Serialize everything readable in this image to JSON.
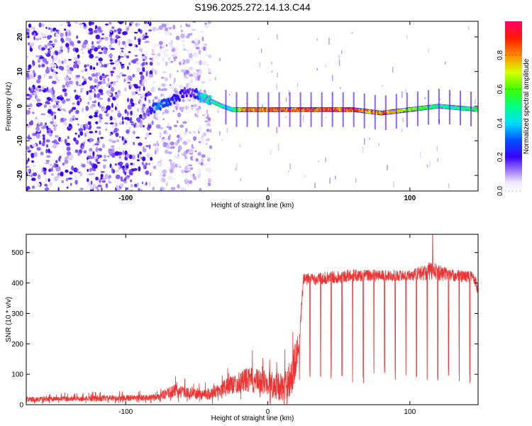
{
  "title": "S196.2025.272.14.13.C44",
  "chart_data": [
    {
      "type": "heatmap",
      "name": "spectrogram",
      "xlabel": "Height of straight line (km)",
      "ylabel": "Frequency (Hz)",
      "xlim": [
        -170,
        148
      ],
      "ylim": [
        -24.5,
        24.5
      ],
      "xticks": [
        -100,
        0,
        100
      ],
      "yticks": [
        -20,
        -10,
        0,
        10,
        20
      ],
      "xtick_labels": [
        "-100",
        "0",
        "100"
      ],
      "ytick_labels": [
        "-20",
        "-10",
        "0",
        "10",
        "20"
      ],
      "colorbar": {
        "label": "Normalized spectral amplitude",
        "range": [
          0,
          1
        ],
        "ticks": [
          0.0,
          0.2,
          0.4,
          0.6,
          0.8
        ],
        "tick_labels": [
          "0.0",
          "0.2",
          "0.4",
          "0.6",
          "0.8"
        ]
      },
      "signal_track": {
        "x": [
          -85,
          -78,
          -72,
          -65,
          -58,
          -52,
          -46,
          -40,
          -32,
          -25,
          -15,
          0,
          20,
          40,
          60,
          80,
          100,
          120,
          148
        ],
        "freq_hz": [
          -2,
          0,
          1,
          2,
          4,
          4,
          2.5,
          1.5,
          0,
          -1,
          -1,
          -1,
          -1,
          -1,
          -1,
          -2,
          -1,
          0,
          -1
        ],
        "amplitude": [
          0.15,
          0.35,
          0.3,
          0.25,
          0.2,
          0.2,
          0.45,
          0.5,
          0.5,
          0.5,
          0.9,
          0.9,
          0.95,
          0.95,
          0.95,
          0.9,
          0.7,
          0.55,
          0.55
        ]
      },
      "noise_region_x": [
        -170,
        -40
      ]
    },
    {
      "type": "line",
      "name": "snr",
      "xlabel": "Height of straight line (km)",
      "ylabel": "SNR (10 * v/v)",
      "xlim": [
        -170,
        148
      ],
      "ylim": [
        0,
        560
      ],
      "xticks": [
        -100,
        0,
        100
      ],
      "yticks": [
        0,
        100,
        200,
        300,
        400,
        500
      ],
      "xtick_labels": [
        "-100",
        "0",
        "100"
      ],
      "ytick_labels": [
        "0",
        "100",
        "200",
        "300",
        "400",
        "500"
      ],
      "color": "#ee3333",
      "envelope": {
        "x": [
          -170,
          -80,
          -65,
          -50,
          -40,
          -30,
          -15,
          0,
          12,
          18,
          22,
          25,
          60,
          100,
          115,
          130,
          145,
          148
        ],
        "baseline": [
          15,
          20,
          40,
          30,
          30,
          50,
          70,
          60,
          40,
          90,
          200,
          410,
          425,
          425,
          440,
          425,
          420,
          380
        ],
        "spread": [
          15,
          20,
          40,
          30,
          40,
          50,
          80,
          80,
          100,
          150,
          60,
          40,
          40,
          35,
          60,
          40,
          40,
          40
        ]
      },
      "peak": {
        "x": 116,
        "y": 558
      },
      "dropout_spacing_km": 7.5,
      "dropout_level": 100
    }
  ]
}
